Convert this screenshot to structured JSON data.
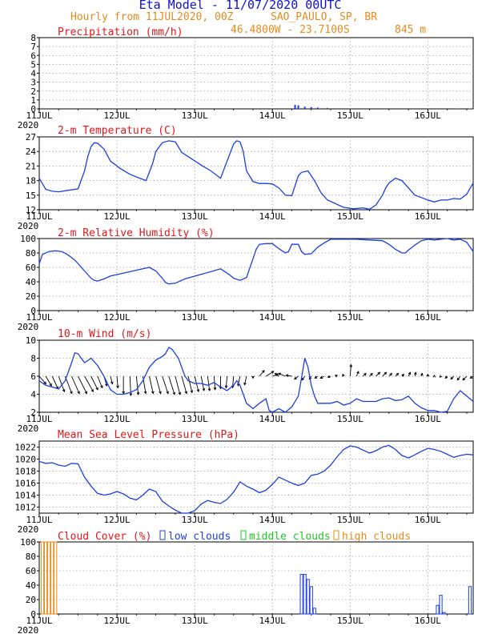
{
  "header": {
    "title": "Eta Model - 11/07/2020 00UTC",
    "subtitle": "Hourly from 11JUL2020, 00Z",
    "location": "SAO_PAULO, SP, BR",
    "coordinates": "46.4800W - 23.7100S",
    "elevation": "845  m"
  },
  "colors": {
    "title": "#1010d0",
    "subtitle": "#e88a1a",
    "panel_title": "#e01818",
    "line": "#1b3fe0",
    "low": "#1b3fe0",
    "middle": "#22c422",
    "high": "#e88a1a",
    "grid": "#888888",
    "arrow": "#000000"
  },
  "x_axis": {
    "tick_labels": [
      "11JUL",
      "12JUL",
      "13JUL",
      "14JUL",
      "15JUL",
      "16JUL"
    ],
    "year_label": "2020",
    "hours_total": 134
  },
  "chart_data": [
    {
      "id": "precip",
      "type": "bar",
      "title": "Precipitation (mm/h)",
      "ylim": [
        0,
        8
      ],
      "yticks": [
        0,
        1,
        2,
        3,
        4,
        5,
        6,
        7,
        8
      ],
      "x_hours": [
        79,
        80,
        82,
        84,
        86,
        89,
        129,
        133
      ],
      "values": [
        0.45,
        0.4,
        0.25,
        0.2,
        0.15,
        0.1,
        0.05,
        0.05
      ]
    },
    {
      "id": "temp",
      "type": "line",
      "title": "2-m Temperature (C)",
      "ylim": [
        12,
        27
      ],
      "yticks": [
        12,
        15,
        18,
        21,
        24,
        27
      ],
      "x_hours": [
        0,
        2,
        4,
        6,
        9,
        12,
        14,
        15,
        16,
        17,
        18,
        20,
        22,
        25,
        28,
        31,
        33,
        35,
        36,
        38,
        40,
        42,
        44,
        47,
        50,
        53,
        56,
        58,
        60,
        61,
        62,
        63,
        64,
        66,
        68,
        70,
        72,
        74,
        76,
        78,
        80,
        81,
        83,
        85,
        87,
        89,
        91,
        94,
        97,
        100,
        102,
        104,
        106,
        107,
        108,
        110,
        112,
        114,
        116,
        118,
        120,
        122,
        124,
        126,
        128,
        130,
        132,
        134
      ],
      "values": [
        18.5,
        16.2,
        15.8,
        15.7,
        16.0,
        16.3,
        20.0,
        23.0,
        25.0,
        25.8,
        25.7,
        24.5,
        22.0,
        20.5,
        19.3,
        18.5,
        18.0,
        21.5,
        24.0,
        25.8,
        26.2,
        26.0,
        23.8,
        22.5,
        21.2,
        20.0,
        18.5,
        22.0,
        25.5,
        26.2,
        26.0,
        24.0,
        20.0,
        17.8,
        17.4,
        17.4,
        17.3,
        16.5,
        15.0,
        14.9,
        19.0,
        19.7,
        20.0,
        18.0,
        15.5,
        14.0,
        13.4,
        12.5,
        12.2,
        12.4,
        12.1,
        13.0,
        15.0,
        16.5,
        17.5,
        18.5,
        18.0,
        16.5,
        15.0,
        14.5,
        14.0,
        13.6,
        14.0,
        14.0,
        14.3,
        14.2,
        15.2,
        17.5
      ]
    },
    {
      "id": "rh",
      "type": "line",
      "title": "2-m Relative Humidity (%)",
      "ylim": [
        0,
        100
      ],
      "yticks": [
        0,
        20,
        40,
        60,
        80,
        100
      ],
      "x_hours": [
        0,
        1,
        3,
        5,
        7,
        9,
        11,
        13,
        15,
        16,
        17,
        18,
        20,
        22,
        24,
        28,
        32,
        34,
        36,
        38,
        39,
        40,
        42,
        45,
        49,
        53,
        56,
        59,
        60,
        62,
        64,
        66,
        67,
        68,
        70,
        72,
        74,
        76,
        77,
        78,
        80,
        81,
        82,
        84,
        86,
        88,
        90,
        94,
        98,
        102,
        106,
        108,
        110,
        112,
        113,
        114,
        116,
        118,
        120,
        122,
        124,
        126,
        128,
        130,
        132,
        134
      ],
      "values": [
        65,
        78,
        82,
        83,
        82,
        77,
        70,
        60,
        50,
        45,
        42,
        41,
        44,
        48,
        50,
        54,
        58,
        60,
        55,
        45,
        39,
        37,
        38,
        44,
        49,
        54,
        58,
        49,
        45,
        42,
        46,
        72,
        85,
        92,
        93,
        93,
        86,
        80,
        82,
        92,
        92,
        82,
        78,
        79,
        88,
        94,
        99,
        99,
        99,
        98,
        97,
        92,
        85,
        80,
        80,
        84,
        91,
        97,
        99,
        98,
        99,
        100,
        98,
        99,
        95,
        82
      ]
    },
    {
      "id": "wind",
      "type": "line",
      "title": "10-m Wind (m/s)",
      "ylim": [
        2,
        10
      ],
      "yticks": [
        2,
        4,
        6,
        8,
        10
      ],
      "x_hours": [
        0,
        2,
        4,
        6,
        8,
        10,
        11,
        12,
        14,
        16,
        18,
        20,
        22,
        24,
        26,
        28,
        30,
        32,
        34,
        36,
        38,
        39,
        40,
        41,
        43,
        44,
        45,
        46,
        48,
        50,
        52,
        54,
        56,
        58,
        60,
        61,
        62,
        63,
        64,
        66,
        68,
        70,
        71,
        72,
        74,
        76,
        78,
        80,
        81,
        82,
        83,
        84,
        85,
        86,
        88,
        90,
        92,
        94,
        96,
        98,
        100,
        102,
        104,
        106,
        108,
        110,
        112,
        114,
        116,
        118,
        120,
        122,
        124,
        126,
        128,
        130,
        132,
        134
      ],
      "values": [
        5.5,
        5.0,
        4.8,
        4.6,
        5.5,
        7.5,
        8.6,
        8.5,
        7.5,
        8.0,
        7.2,
        6.0,
        4.5,
        4.0,
        4.0,
        4.2,
        4.5,
        5.5,
        7.0,
        7.8,
        8.2,
        8.5,
        9.2,
        9.0,
        8.0,
        7.0,
        6.0,
        5.5,
        5.2,
        5.2,
        5.0,
        5.3,
        4.8,
        4.4,
        5.0,
        5.5,
        5.0,
        4.0,
        3.0,
        2.4,
        3.0,
        3.5,
        2.2,
        2.0,
        2.4,
        2.0,
        2.6,
        3.8,
        5.8,
        8.0,
        7.0,
        5.0,
        3.8,
        3.0,
        3.0,
        3.0,
        3.2,
        2.8,
        3.0,
        3.5,
        3.2,
        3.2,
        3.2,
        3.5,
        3.6,
        3.3,
        3.4,
        3.8,
        3.0,
        2.5,
        2.2,
        2.2,
        2.0,
        2.1,
        3.5,
        4.4,
        3.8,
        3.2
      ],
      "barbs": {
        "x_start": 0,
        "x_end": 134,
        "x_step": 2,
        "baseline": 6,
        "u": [
          0.7,
          0.6,
          0.6,
          0.6,
          0.7,
          0.8,
          0.9,
          0.9,
          0.7,
          0.5,
          0.3,
          0.2,
          0.1,
          0.0,
          0.1,
          0.2,
          0.3,
          0.4,
          0.5,
          0.6,
          0.6,
          0.5,
          0.5,
          0.4,
          0.4,
          0.3,
          0.2,
          0.1,
          0.0,
          -0.1,
          -0.1,
          -0.2,
          -0.2,
          0.0,
          0.5,
          0.8,
          0.6,
          -0.4,
          -0.7,
          -0.6,
          -0.4,
          -0.3,
          -0.2,
          -0.3,
          -0.4,
          -0.3,
          -0.2,
          -0.1,
          0.1,
          0.2,
          0.3,
          0.3,
          0.4,
          0.4,
          0.3,
          0.3,
          0.2,
          0.2,
          0.1,
          0.1,
          0.0,
          0.0,
          -0.1,
          -0.2,
          -0.3,
          -0.3,
          -0.4,
          -0.3
        ],
        "v": [
          -0.8,
          -1.0,
          -1.3,
          -1.6,
          -1.8,
          -1.8,
          -1.8,
          -1.6,
          -1.4,
          -1.2,
          -1.0,
          -0.8,
          -1.2,
          -1.8,
          -2.0,
          -1.9,
          -1.8,
          -1.8,
          -1.8,
          -1.8,
          -1.9,
          -1.9,
          -1.8,
          -1.7,
          -1.6,
          -1.5,
          -1.5,
          -1.4,
          -1.3,
          -1.2,
          -1.2,
          -1.0,
          -0.9,
          -0.2,
          0.6,
          0.5,
          0.2,
          0.3,
          0.3,
          0.1,
          -0.3,
          -0.4,
          -0.3,
          -0.2,
          -0.2,
          -0.1,
          0.1,
          0.2,
          1.2,
          0.5,
          0.3,
          0.3,
          0.4,
          0.4,
          0.3,
          0.3,
          0.2,
          0.4,
          0.4,
          0.3,
          0.2,
          0.1,
          -0.1,
          -0.2,
          -0.3,
          -0.4,
          -0.4,
          -0.2
        ]
      }
    },
    {
      "id": "mslp",
      "type": "line",
      "title": "Mean Sea Level Pressure (hPa)",
      "ylim": [
        1011,
        1023
      ],
      "yticks": [
        1012,
        1014,
        1016,
        1018,
        1020,
        1022
      ],
      "x_hours": [
        0,
        2,
        4,
        6,
        8,
        10,
        12,
        14,
        16,
        18,
        20,
        22,
        24,
        26,
        28,
        30,
        32,
        34,
        36,
        38,
        40,
        42,
        44,
        46,
        48,
        50,
        52,
        54,
        56,
        58,
        60,
        62,
        64,
        66,
        68,
        70,
        72,
        74,
        76,
        78,
        80,
        82,
        84,
        86,
        88,
        90,
        92,
        94,
        96,
        98,
        100,
        102,
        104,
        106,
        108,
        110,
        112,
        114,
        116,
        118,
        120,
        122,
        124,
        126,
        128,
        130,
        132,
        134
      ],
      "values": [
        1019.6,
        1019.3,
        1019.4,
        1019.0,
        1018.8,
        1019.3,
        1019.2,
        1017.0,
        1015.5,
        1014.3,
        1014.0,
        1014.2,
        1014.6,
        1014.2,
        1013.5,
        1013.2,
        1014.0,
        1015.0,
        1014.6,
        1013.0,
        1012.2,
        1011.5,
        1011.0,
        1011.0,
        1011.4,
        1012.5,
        1013.1,
        1012.8,
        1012.6,
        1013.3,
        1014.5,
        1016.2,
        1015.5,
        1015.0,
        1014.4,
        1014.8,
        1015.8,
        1017.0,
        1016.5,
        1016.0,
        1015.6,
        1016.0,
        1017.3,
        1017.5,
        1018.0,
        1019.0,
        1020.4,
        1021.6,
        1022.2,
        1022.0,
        1021.5,
        1021.0,
        1021.4,
        1022.0,
        1022.3,
        1021.6,
        1020.6,
        1020.2,
        1020.7,
        1021.3,
        1021.8,
        1021.6,
        1021.3,
        1020.8,
        1020.3,
        1020.6,
        1020.8,
        1020.7
      ]
    },
    {
      "id": "cloud",
      "type": "bar",
      "title": "Cloud Cover (%)",
      "legend": [
        "low clouds",
        "middle clouds",
        "high clouds"
      ],
      "ylim": [
        0,
        100
      ],
      "yticks": [
        0,
        20,
        40,
        60,
        80,
        100
      ],
      "series": [
        {
          "name": "high clouds",
          "x_hours": [
            1,
            2,
            3,
            4,
            5
          ],
          "values": [
            100,
            100,
            100,
            100,
            100
          ]
        },
        {
          "name": "low clouds",
          "x_hours": [
            81,
            82,
            83,
            84,
            85,
            123,
            124,
            125,
            133
          ],
          "values": [
            55,
            55,
            48,
            38,
            8,
            12,
            26,
            2,
            38
          ]
        }
      ]
    }
  ]
}
